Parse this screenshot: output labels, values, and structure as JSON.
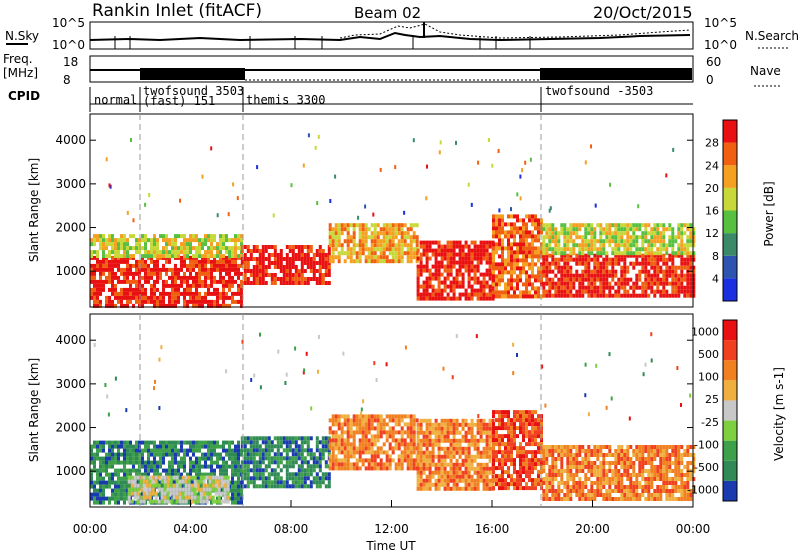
{
  "header": {
    "station": "Rankin Inlet (fitACF)",
    "beam": "Beam 02",
    "date": "20/Oct/2015"
  },
  "top_panels": {
    "nsky_label": "N.Sky",
    "nsky_ticks": [
      "10^5",
      "10^0"
    ],
    "nsearch_label": "N.Search",
    "nsearch_ticks": [
      "10^5",
      "10^0"
    ],
    "freq_label": "Freq.",
    "freq_unit": "[MHz]",
    "freq_ticks": [
      "18",
      "8"
    ],
    "nave_label": "Nave",
    "nave_ticks": [
      "60",
      "0"
    ],
    "cpid_label": "CPID",
    "cpid_modes": [
      {
        "name": "normal",
        "sub": ""
      },
      {
        "name": "twofsound  3503",
        "sub": "(fast)  151"
      },
      {
        "name": "themis  3300",
        "sub": ""
      },
      {
        "name": "twofsound  -3503",
        "sub": ""
      }
    ]
  },
  "chart_data": [
    {
      "type": "heatmap",
      "title": "Power",
      "ylabel": "Slant Range [km]",
      "ylim": [
        180,
        4600
      ],
      "yticks": [
        "1000",
        "2000",
        "3000",
        "4000"
      ],
      "xlim": [
        0,
        24
      ],
      "colorbar_label": "Power [dB]",
      "colorbar_ticks": [
        "4",
        "8",
        "12",
        "16",
        "20",
        "24",
        "28"
      ],
      "colorbar_colors": [
        "#1a2fe0",
        "#2d55b0",
        "#3a8a6a",
        "#58c040",
        "#c8d838",
        "#f5a020",
        "#f06010",
        "#e81010"
      ],
      "echo_regions": [
        {
          "t0": 0.0,
          "t1": 6.0,
          "r0": 250,
          "r1": 1350,
          "level": 7
        },
        {
          "t0": 0.0,
          "t1": 6.0,
          "r0": 1350,
          "r1": 1850,
          "level": 4
        },
        {
          "t0": 6.0,
          "t1": 9.5,
          "r0": 700,
          "r1": 1600,
          "level": 7
        },
        {
          "t0": 9.5,
          "t1": 13.0,
          "r0": 1200,
          "r1": 2100,
          "level": 5
        },
        {
          "t0": 13.0,
          "t1": 16.0,
          "r0": 400,
          "r1": 1700,
          "level": 7
        },
        {
          "t0": 16.0,
          "t1": 18.0,
          "r0": 400,
          "r1": 2300,
          "level": 6
        },
        {
          "t0": 18.0,
          "t1": 24.0,
          "r0": 400,
          "r1": 1400,
          "level": 7
        },
        {
          "t0": 18.0,
          "t1": 24.0,
          "r0": 1400,
          "r1": 2100,
          "level": 4
        }
      ]
    },
    {
      "type": "heatmap",
      "title": "Velocity",
      "ylabel": "Slant Range [km]",
      "ylim": [
        180,
        4600
      ],
      "yticks": [
        "1000",
        "2000",
        "3000",
        "4000"
      ],
      "xlim": [
        0,
        24
      ],
      "xticks": [
        "00:00",
        "04:00",
        "08:00",
        "12:00",
        "16:00",
        "20:00",
        "00:00"
      ],
      "xlabel": "Time UT",
      "colorbar_label": "Velocity [m s-1]",
      "colorbar_ticks": [
        "1000",
        "500",
        "100",
        "25",
        "-25",
        "-100",
        "-500",
        "-1000"
      ],
      "colorbar_colors": [
        "#1a3bb0",
        "#2f8a55",
        "#3ea048",
        "#7ed040",
        "#c8c8c8",
        "#f0b040",
        "#f08020",
        "#f04020",
        "#e81010"
      ],
      "echo_regions": [
        {
          "t0": 0.0,
          "t1": 6.0,
          "r0": 300,
          "r1": 1700,
          "level": 1
        },
        {
          "t0": 1.5,
          "t1": 5.5,
          "r0": 300,
          "r1": 900,
          "level": 4
        },
        {
          "t0": 6.0,
          "t1": 9.5,
          "r0": 700,
          "r1": 1800,
          "level": 1
        },
        {
          "t0": 9.5,
          "t1": 13.0,
          "r0": 1100,
          "r1": 2300,
          "level": 6
        },
        {
          "t0": 13.0,
          "t1": 16.0,
          "r0": 600,
          "r1": 2200,
          "level": 6
        },
        {
          "t0": 16.0,
          "t1": 18.0,
          "r0": 600,
          "r1": 2400,
          "level": 7
        },
        {
          "t0": 18.0,
          "t1": 24.0,
          "r0": 400,
          "r1": 1600,
          "level": 6
        }
      ]
    }
  ]
}
